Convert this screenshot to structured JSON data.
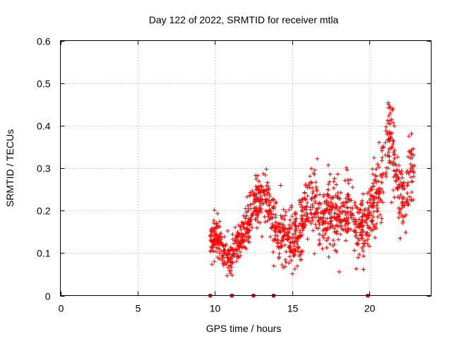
{
  "chart_data": {
    "type": "scatter",
    "title": "Day 122 of 2022, SRMTID for receiver mtla",
    "xlabel": "GPS time / hours",
    "ylabel": "SRMTID / TECUs",
    "xlim": [
      0,
      24
    ],
    "ylim": [
      0,
      0.6
    ],
    "x_ticks": [
      0,
      5,
      10,
      15,
      20
    ],
    "y_ticks": [
      0,
      0.1,
      0.2,
      0.3,
      0.4,
      0.5,
      0.6
    ],
    "grid": true,
    "marker": "plus",
    "color": "#ff0000",
    "zero_markers_x": [
      9.7,
      11.1,
      12.5,
      13.8,
      19.9
    ],
    "series": [
      {
        "name": "SRMTID",
        "anchors": [
          {
            "x": 9.7,
            "y": 0.12
          },
          {
            "x": 10.1,
            "y": 0.15
          },
          {
            "x": 10.6,
            "y": 0.1
          },
          {
            "x": 11.0,
            "y": 0.09
          },
          {
            "x": 11.4,
            "y": 0.12
          },
          {
            "x": 11.8,
            "y": 0.14
          },
          {
            "x": 12.2,
            "y": 0.17
          },
          {
            "x": 12.6,
            "y": 0.21
          },
          {
            "x": 13.0,
            "y": 0.23
          },
          {
            "x": 13.4,
            "y": 0.22
          },
          {
            "x": 13.8,
            "y": 0.17
          },
          {
            "x": 14.2,
            "y": 0.14
          },
          {
            "x": 14.6,
            "y": 0.15
          },
          {
            "x": 15.0,
            "y": 0.13
          },
          {
            "x": 15.4,
            "y": 0.15
          },
          {
            "x": 15.8,
            "y": 0.18
          },
          {
            "x": 16.2,
            "y": 0.23
          },
          {
            "x": 16.6,
            "y": 0.21
          },
          {
            "x": 17.0,
            "y": 0.18
          },
          {
            "x": 17.4,
            "y": 0.2
          },
          {
            "x": 17.8,
            "y": 0.18
          },
          {
            "x": 18.2,
            "y": 0.19
          },
          {
            "x": 18.6,
            "y": 0.21
          },
          {
            "x": 19.0,
            "y": 0.18
          },
          {
            "x": 19.4,
            "y": 0.15
          },
          {
            "x": 19.8,
            "y": 0.17
          },
          {
            "x": 20.2,
            "y": 0.22
          },
          {
            "x": 20.6,
            "y": 0.25
          },
          {
            "x": 21.0,
            "y": 0.29
          },
          {
            "x": 21.3,
            "y": 0.4
          },
          {
            "x": 21.6,
            "y": 0.33
          },
          {
            "x": 21.9,
            "y": 0.24
          },
          {
            "x": 22.2,
            "y": 0.22
          },
          {
            "x": 22.5,
            "y": 0.28
          },
          {
            "x": 22.8,
            "y": 0.3
          }
        ],
        "spread": [
          {
            "x": 9.7,
            "s": 0.035
          },
          {
            "x": 12.0,
            "s": 0.045
          },
          {
            "x": 14.0,
            "s": 0.055
          },
          {
            "x": 16.0,
            "s": 0.065
          },
          {
            "x": 18.0,
            "s": 0.06
          },
          {
            "x": 20.0,
            "s": 0.06
          },
          {
            "x": 21.3,
            "s": 0.09
          },
          {
            "x": 22.8,
            "s": 0.06
          }
        ],
        "x_range": [
          9.7,
          22.9
        ],
        "count": 1300
      }
    ]
  }
}
